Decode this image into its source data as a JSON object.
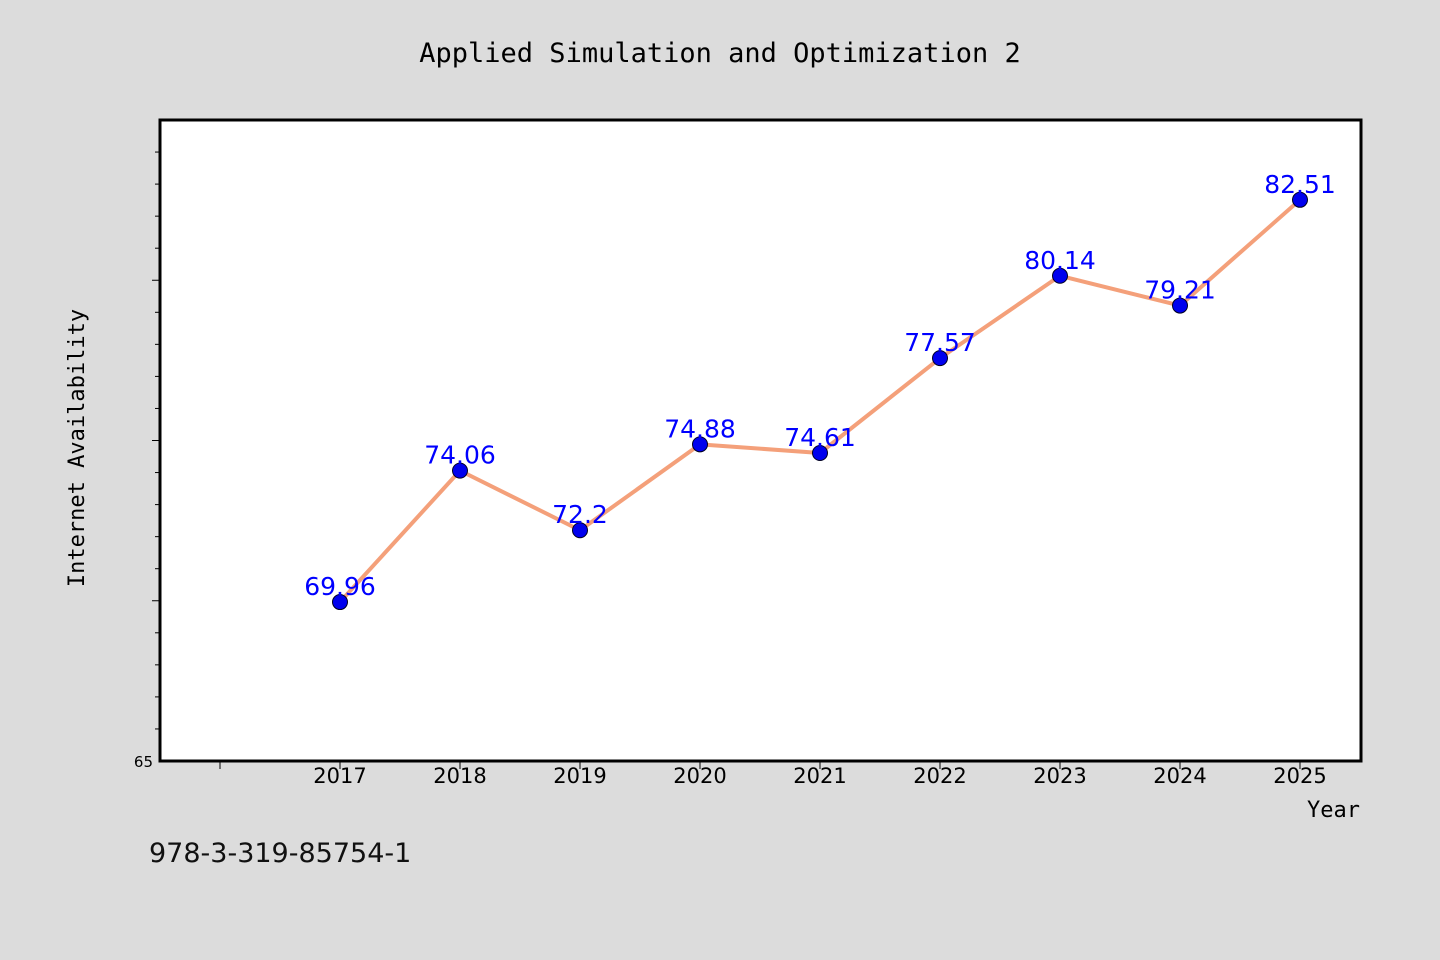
{
  "chart_data": {
    "type": "line",
    "title": "Applied Simulation and Optimization 2",
    "xlabel": "Year",
    "ylabel": "Internet Availability",
    "categories": [
      "2017",
      "2018",
      "2019",
      "2020",
      "2021",
      "2022",
      "2023",
      "2024",
      "2025"
    ],
    "series": [
      {
        "values": [
          69.96,
          74.06,
          72.2,
          74.88,
          74.61,
          77.57,
          80.14,
          79.21,
          82.51
        ],
        "data_labels": [
          "69.96",
          "74.06",
          "72.2",
          "74.88",
          "74.61",
          "77.57",
          "80.14",
          "79.21",
          "82.51"
        ]
      }
    ],
    "y_tick_labels": [
      "65"
    ],
    "ylim": [
      65,
      85
    ],
    "grid": false,
    "line_color": "#f4a07a",
    "marker_color": "#0000ee",
    "label_color": "#0000ff",
    "plot_background": "#ffffff",
    "page_background": "#dcdcdc"
  },
  "footer": {
    "isbn": "978-3-319-85754-1"
  }
}
